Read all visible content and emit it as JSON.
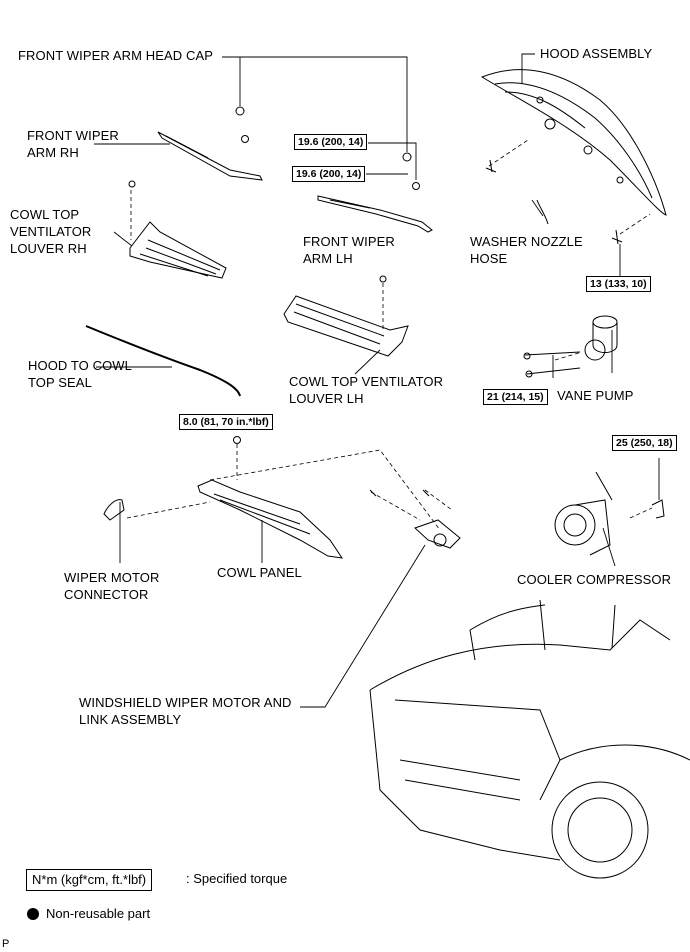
{
  "labels": {
    "wiper_arm_head_cap": "FRONT WIPER ARM HEAD CAP",
    "hood_assembly": "HOOD ASSEMBLY",
    "wiper_arm_rh": "FRONT WIPER\nARM RH",
    "cowl_top_vent_rh": "COWL TOP\nVENTILATOR\nLOUVER RH",
    "wiper_arm_lh": "FRONT WIPER\nARM LH",
    "washer_nozzle_hose": "WASHER NOZZLE\nHOSE",
    "hood_to_cowl_seal": "HOOD TO COWL\nTOP SEAL",
    "cowl_top_vent_lh": "COWL TOP VENTILATOR\nLOUVER LH",
    "vane_pump": "VANE PUMP",
    "wiper_motor_connector": "WIPER MOTOR\nCONNECTOR",
    "cowl_panel": "COWL PANEL",
    "cooler_compressor": "COOLER COMPRESSOR",
    "wiper_motor_link": "WINDSHIELD WIPER MOTOR AND\nLINK ASSEMBLY"
  },
  "torque": {
    "t1": "19.6 (200, 14)",
    "t2": "19.6 (200, 14)",
    "t3": "13 (133, 10)",
    "t4": "21 (214, 15)",
    "t5": "8.0 (81, 70 in.*lbf)",
    "t6": "25 (250, 18)"
  },
  "legend": {
    "torque_unit": "N*m (kgf*cm, ft.*lbf)",
    "torque_desc": ": Specified torque",
    "nonreusable": "Non-reusable part"
  },
  "page_marker": "P"
}
